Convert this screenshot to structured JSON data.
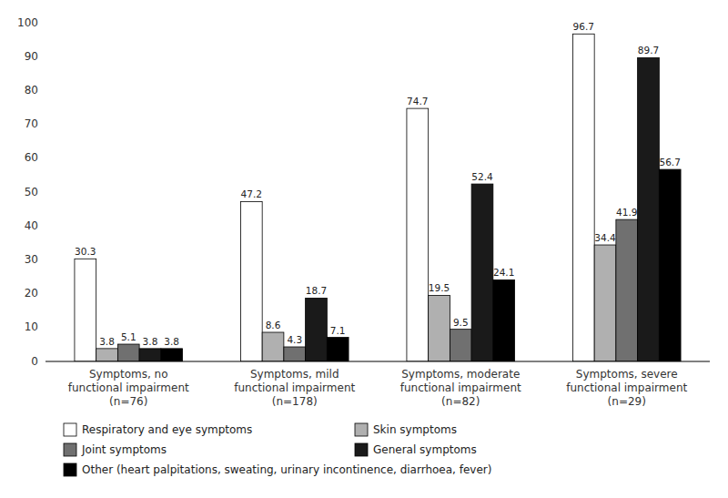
{
  "chart_data": {
    "type": "bar",
    "categories": [
      "Symptoms, no\nfunctional impairment\n(n=76)",
      "Symptoms, mild\nfunctional impairment\n(n=178)",
      "Symptoms, moderate\nfunctional impairment\n(n=82)",
      "Symptoms, severe\nfunctional impairment\n(n=29)"
    ],
    "series": [
      {
        "name": "Respiratory and eye symptoms",
        "color": "#ffffff",
        "values": [
          30.3,
          47.2,
          74.7,
          96.7
        ]
      },
      {
        "name": "Skin symptoms",
        "color": "#b0b0b0",
        "values": [
          3.8,
          8.6,
          19.5,
          34.4
        ]
      },
      {
        "name": "Joint symptoms",
        "color": "#707070",
        "values": [
          5.1,
          4.3,
          9.5,
          41.9
        ]
      },
      {
        "name": "General symptoms",
        "color": "#1a1a1a",
        "values": [
          3.8,
          18.7,
          52.4,
          89.7
        ]
      },
      {
        "name": "Other (heart palpitations, sweating, urinary incontinence, diarrhoea, fever)",
        "color": "#000000",
        "values": [
          3.8,
          7.1,
          24.1,
          56.7
        ]
      }
    ],
    "ylim": [
      0,
      100
    ],
    "yticks": [
      0,
      10,
      20,
      30,
      40,
      50,
      60,
      70,
      80,
      90,
      100
    ],
    "grid": false,
    "legend": "bottom",
    "data_labels": true
  }
}
